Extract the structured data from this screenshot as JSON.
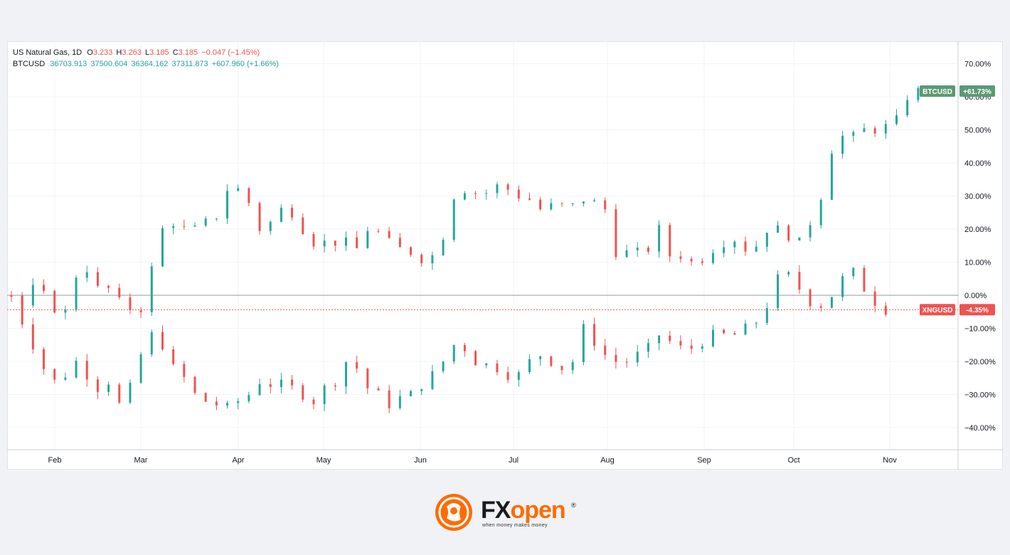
{
  "legend": {
    "ng": {
      "symbol": "US Natural Gas, 1D",
      "o_label": "O",
      "o_value": "3.233",
      "h_label": "H",
      "h_value": "3.263",
      "l_label": "L",
      "l_value": "3.185",
      "c_label": "C",
      "c_value": "3.185",
      "change": "−0.047 (−1.45%)"
    },
    "btc": {
      "symbol": "BTCUSD",
      "open": "36703.913",
      "high": "37500.604",
      "low": "36364.162",
      "close": "37311.873",
      "change": "+607.960 (+1.66%)"
    }
  },
  "logo": {
    "fx": "FX",
    "open": "open",
    "registered": "®",
    "tagline": "when money makes money"
  },
  "colors": {
    "up": "#26a69a",
    "down": "#ef5350",
    "btc_badge": "#5b9a74",
    "ng_badge": "#ef5350",
    "grid": "#f0f3fa",
    "zero_line": "#9598a1",
    "ref_line": "#ef5350"
  },
  "chart_data": {
    "type": "candlestick",
    "title": "",
    "xlabel": "",
    "ylabel": "",
    "ylim": [
      -45,
      75
    ],
    "y_unit": "%",
    "y_ticks": [
      "70.00%",
      "60.00%",
      "50.00%",
      "40.00%",
      "30.00%",
      "20.00%",
      "10.00%",
      "0.00%",
      "−10.00%",
      "−20.00%",
      "−30.00%",
      "−40.00%"
    ],
    "x_ticks": [
      "Feb",
      "Mar",
      "Apr",
      "May",
      "Jun",
      "Jul",
      "Aug",
      "Sep",
      "Oct",
      "Nov"
    ],
    "grid": true,
    "reference_line": -4.35,
    "series": [
      {
        "name": "BTCUSD",
        "badge": "BTCUSD",
        "last_change": "+61.73%",
        "last_value": 61.73,
        "path": [
          [
            0,
            0
          ],
          [
            4,
            -3
          ],
          [
            8,
            2
          ],
          [
            12,
            0
          ],
          [
            16,
            -4
          ],
          [
            20,
            -5
          ],
          [
            24,
            6
          ],
          [
            28,
            8
          ],
          [
            32,
            2
          ],
          [
            36,
            2
          ],
          [
            40,
            -2
          ],
          [
            44,
            -4
          ],
          [
            46,
            -10
          ],
          [
            48,
            -4
          ],
          [
            52,
            8
          ],
          [
            56,
            20
          ],
          [
            60,
            22
          ],
          [
            64,
            20
          ],
          [
            68,
            20
          ],
          [
            72,
            22
          ],
          [
            76,
            24
          ],
          [
            80,
            32
          ],
          [
            84,
            32
          ],
          [
            88,
            28
          ],
          [
            92,
            20
          ],
          [
            96,
            22
          ],
          [
            100,
            26
          ],
          [
            104,
            25
          ],
          [
            108,
            20
          ],
          [
            112,
            16
          ],
          [
            116,
            16
          ],
          [
            120,
            16
          ],
          [
            124,
            16
          ],
          [
            128,
            14
          ],
          [
            132,
            20
          ],
          [
            136,
            19
          ],
          [
            140,
            16
          ],
          [
            144,
            14
          ],
          [
            148,
            13
          ],
          [
            152,
            11
          ],
          [
            156,
            12
          ],
          [
            160,
            18
          ],
          [
            164,
            30
          ],
          [
            168,
            32
          ],
          [
            172,
            31
          ],
          [
            176,
            31
          ],
          [
            180,
            33
          ],
          [
            184,
            32
          ],
          [
            188,
            30
          ],
          [
            192,
            29
          ],
          [
            196,
            26
          ],
          [
            200,
            27
          ],
          [
            204,
            27
          ],
          [
            208,
            27
          ],
          [
            212,
            29
          ],
          [
            216,
            28
          ],
          [
            220,
            26
          ],
          [
            224,
            13
          ],
          [
            228,
            13
          ],
          [
            232,
            13
          ],
          [
            236,
            14
          ],
          [
            240,
            20
          ],
          [
            244,
            12
          ],
          [
            248,
            12
          ],
          [
            252,
            10
          ],
          [
            256,
            11
          ],
          [
            260,
            14
          ],
          [
            264,
            16
          ],
          [
            268,
            17
          ],
          [
            272,
            14
          ],
          [
            276,
            15
          ],
          [
            280,
            20
          ],
          [
            284,
            20
          ],
          [
            288,
            18
          ],
          [
            292,
            16
          ],
          [
            296,
            22
          ],
          [
            300,
            30
          ],
          [
            304,
            44
          ],
          [
            308,
            48
          ],
          [
            312,
            48
          ],
          [
            316,
            50
          ],
          [
            320,
            50
          ],
          [
            324,
            51
          ],
          [
            328,
            53
          ],
          [
            332,
            60
          ],
          [
            336,
            61.73
          ]
        ]
      },
      {
        "name": "XNGUSD",
        "badge": "XNGUSD",
        "last_change": "-4.35%",
        "last_value": -4.35,
        "path": [
          [
            0,
            0
          ],
          [
            4,
            -8
          ],
          [
            8,
            -15
          ],
          [
            12,
            -22
          ],
          [
            16,
            -26
          ],
          [
            20,
            -24
          ],
          [
            24,
            -20
          ],
          [
            28,
            -24
          ],
          [
            32,
            -28
          ],
          [
            36,
            -26
          ],
          [
            40,
            -33
          ],
          [
            44,
            -28
          ],
          [
            48,
            -18
          ],
          [
            52,
            -12
          ],
          [
            56,
            -15
          ],
          [
            60,
            -22
          ],
          [
            64,
            -25
          ],
          [
            68,
            -30
          ],
          [
            72,
            -32
          ],
          [
            76,
            -33
          ],
          [
            80,
            -34
          ],
          [
            84,
            -32
          ],
          [
            88,
            -30
          ],
          [
            92,
            -26
          ],
          [
            96,
            -27
          ],
          [
            100,
            -27
          ],
          [
            104,
            -28
          ],
          [
            108,
            -30
          ],
          [
            112,
            -32
          ],
          [
            116,
            -28
          ],
          [
            120,
            -26
          ],
          [
            124,
            -20
          ],
          [
            128,
            -22
          ],
          [
            132,
            -28
          ],
          [
            136,
            -30
          ],
          [
            140,
            -33
          ],
          [
            144,
            -31
          ],
          [
            148,
            -30
          ],
          [
            152,
            -27
          ],
          [
            156,
            -24
          ],
          [
            160,
            -20
          ],
          [
            164,
            -15
          ],
          [
            168,
            -16
          ],
          [
            172,
            -20
          ],
          [
            176,
            -21
          ],
          [
            180,
            -22
          ],
          [
            184,
            -24
          ],
          [
            188,
            -24
          ],
          [
            192,
            -20
          ],
          [
            196,
            -18
          ],
          [
            200,
            -20
          ],
          [
            204,
            -22
          ],
          [
            208,
            -20
          ],
          [
            212,
            -10
          ],
          [
            216,
            -14
          ],
          [
            220,
            -18
          ],
          [
            224,
            -20
          ],
          [
            228,
            -20
          ],
          [
            232,
            -18
          ],
          [
            236,
            -16
          ],
          [
            240,
            -12
          ],
          [
            244,
            -14
          ],
          [
            248,
            -16
          ],
          [
            252,
            -16
          ],
          [
            256,
            -14
          ],
          [
            260,
            -12
          ],
          [
            264,
            -12
          ],
          [
            268,
            -12
          ],
          [
            272,
            -10
          ],
          [
            276,
            -8
          ],
          [
            280,
            -3
          ],
          [
            284,
            5
          ],
          [
            288,
            6
          ],
          [
            292,
            2
          ],
          [
            296,
            -2
          ],
          [
            300,
            -3
          ],
          [
            304,
            0
          ],
          [
            308,
            5
          ],
          [
            312,
            7
          ],
          [
            316,
            2
          ],
          [
            320,
            -2
          ],
          [
            324,
            -4.35
          ]
        ]
      }
    ]
  }
}
